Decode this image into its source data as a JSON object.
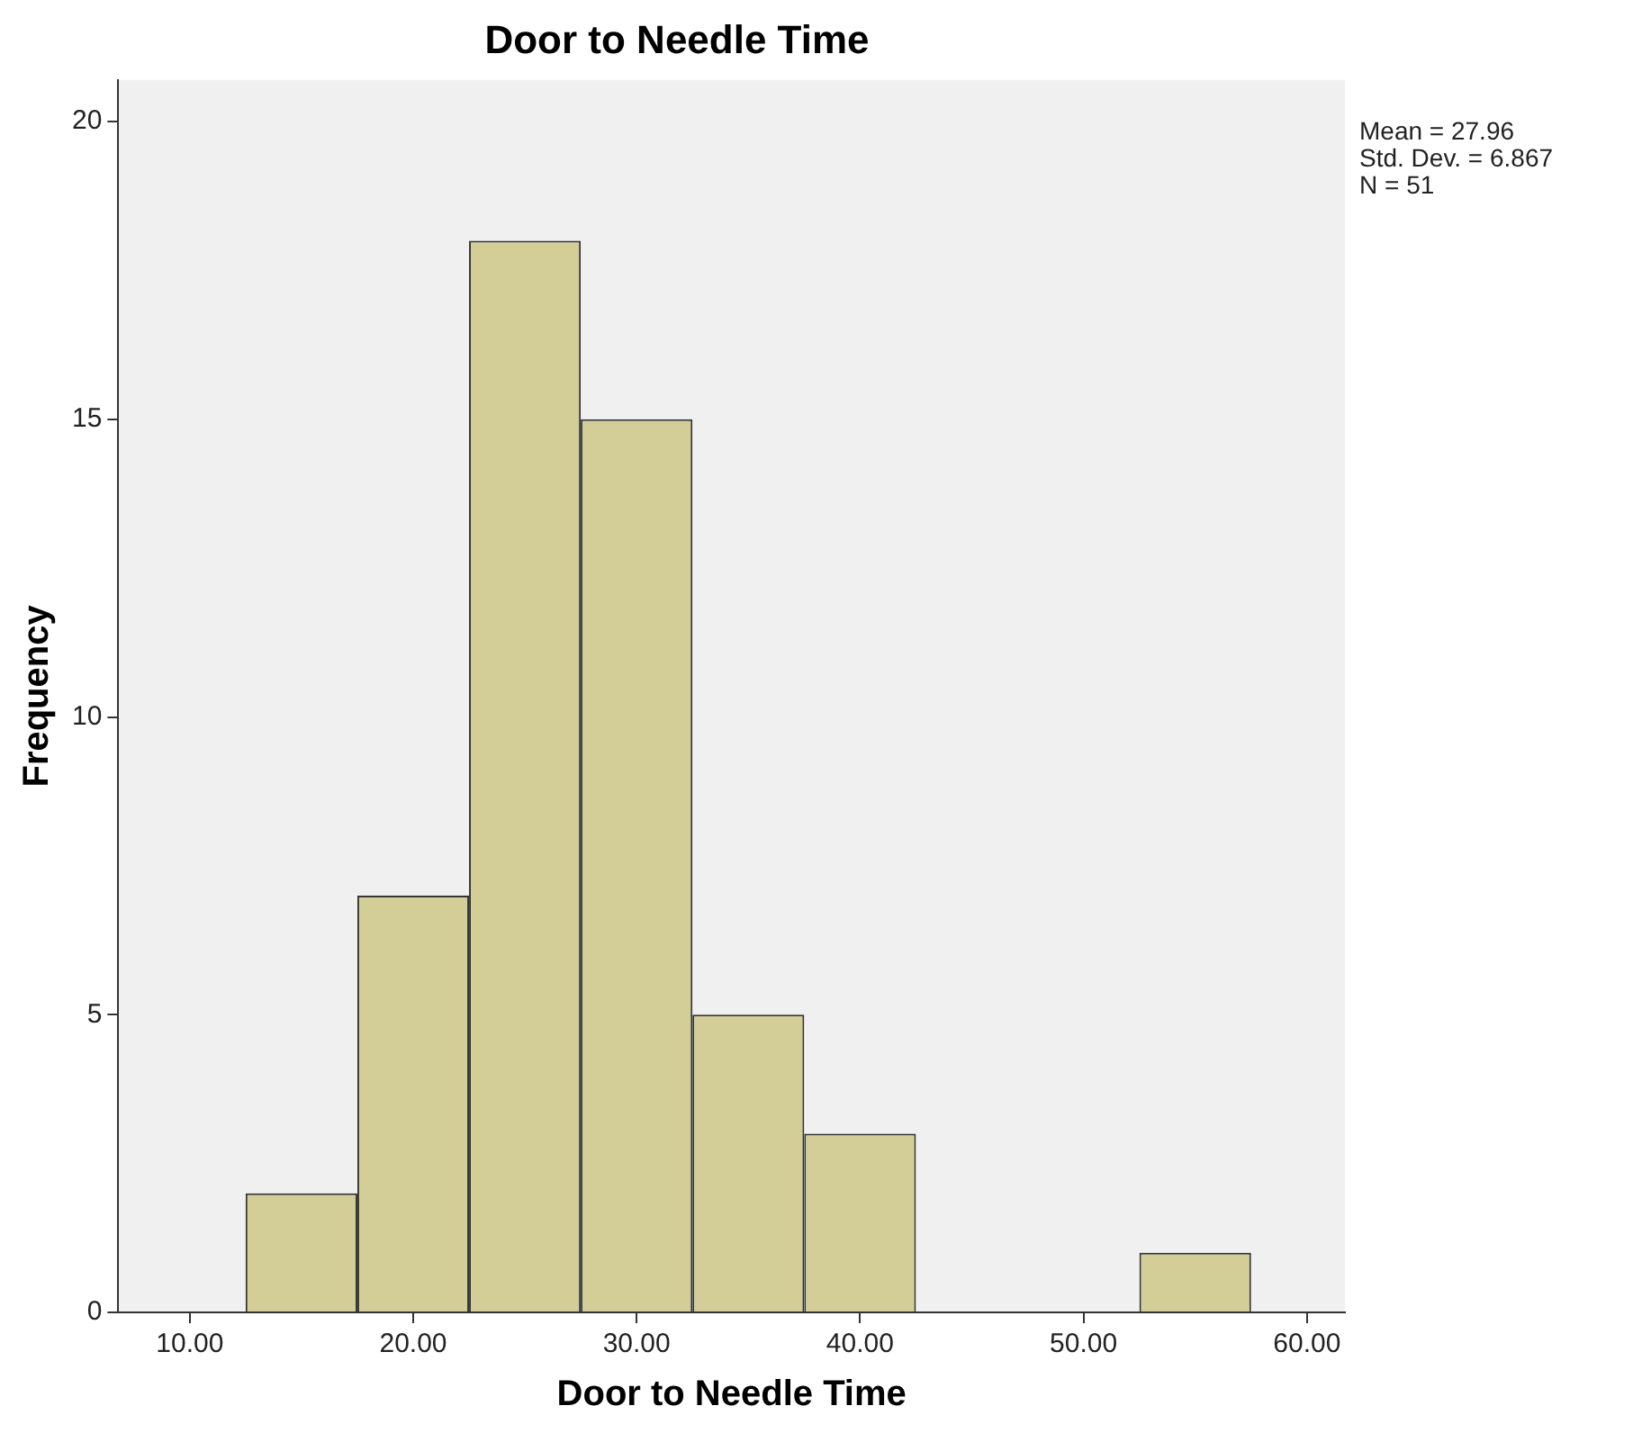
{
  "chart_data": {
    "type": "histogram",
    "title": "Door to Needle Time",
    "xlabel": "Door to Needle Time",
    "ylabel": "Frequency",
    "bins": [
      12.5,
      17.5,
      22.5,
      27.5,
      32.5,
      37.5,
      42.5,
      47.5,
      52.5,
      57.5
    ],
    "values": [
      2,
      7,
      18,
      15,
      5,
      3,
      0,
      0,
      1
    ],
    "color": "#d3ce97",
    "xlim": [
      6.8,
      61.7
    ],
    "xticks": [
      {
        "value": 10,
        "label": "10.00"
      },
      {
        "value": 20,
        "label": "20.00"
      },
      {
        "value": 30,
        "label": "30.00"
      },
      {
        "value": 40,
        "label": "40.00"
      },
      {
        "value": 50,
        "label": "50.00"
      },
      {
        "value": 60,
        "label": "60.00"
      }
    ],
    "ylim": [
      0,
      20.7
    ],
    "yticks": [
      0,
      5,
      10,
      15,
      20
    ],
    "grid": false,
    "legend": false,
    "annotations": [
      "Mean = 27.96",
      "Std. Dev. = 6.867",
      "N = 51"
    ]
  }
}
